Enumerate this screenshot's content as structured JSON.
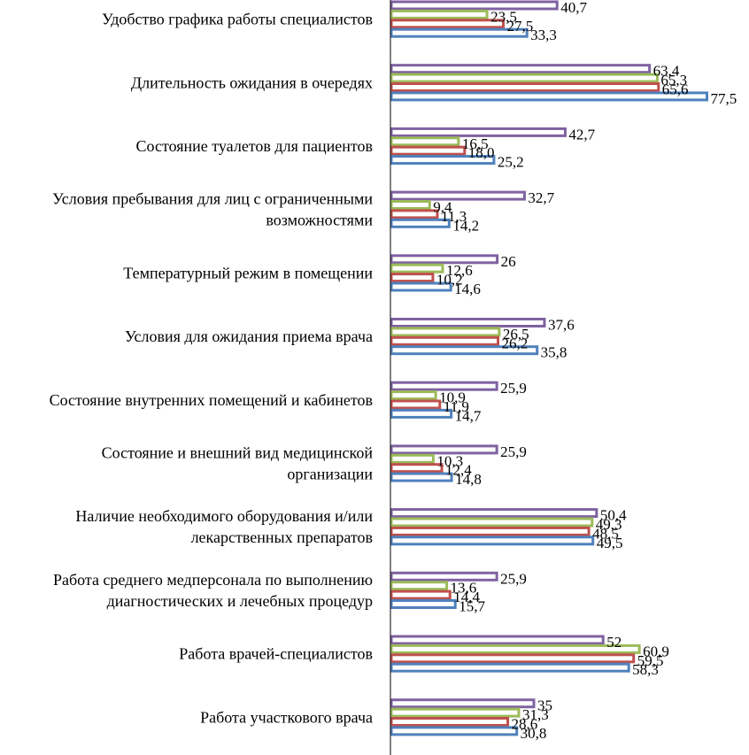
{
  "chart_data": {
    "type": "bar",
    "orientation": "horizontal",
    "title": "",
    "xlabel": "",
    "ylabel": "",
    "xlim": [
      0,
      80
    ],
    "grid": false,
    "legend": "none",
    "categories": [
      [
        "Удобство графика работы специалистов"
      ],
      [
        "Длительность ожидания в очередях"
      ],
      [
        "Состояние туалетов для пациентов"
      ],
      [
        "Условия пребывания для лиц с ограниченными",
        "возможностями"
      ],
      [
        "Температурный режим в помещении"
      ],
      [
        "Условия для ожидания приема врача"
      ],
      [
        "Состояние внутренних помещений и кабинетов"
      ],
      [
        "Состояние и внешний вид медицинской",
        "организации"
      ],
      [
        "Наличие необходимого оборудования и/или",
        "лекарственных препаратов"
      ],
      [
        "Работа среднего медперсонала по выполнению",
        "диагностических и лечебных процедур"
      ],
      [
        "Работа врачей-специалистов"
      ],
      [
        "Работа участкового врача"
      ]
    ],
    "series": [
      {
        "name": "series-purple",
        "color": "#7f62a1",
        "values": [
          40.7,
          63.4,
          42.7,
          32.7,
          26,
          37.6,
          25.9,
          25.9,
          50.4,
          25.9,
          52,
          35
        ],
        "labels": [
          "40,7",
          "63,4",
          "42,7",
          "32,7",
          "26",
          "37,6",
          "25,9",
          "25,9",
          "50,4",
          "25,9",
          "52",
          "35"
        ]
      },
      {
        "name": "series-green",
        "color": "#9bbb59",
        "values": [
          23.5,
          65.3,
          16.5,
          9.4,
          12.6,
          26.5,
          10.9,
          10.3,
          49.3,
          13.6,
          60.9,
          31.3
        ],
        "labels": [
          "23,5",
          "65,3",
          "16,5",
          "9,4",
          "12,6",
          "26,5",
          "10,9",
          "10,3",
          "49,3",
          "13,6",
          "60,9",
          "31,3"
        ]
      },
      {
        "name": "series-red",
        "color": "#c0504d",
        "values": [
          27.5,
          65.6,
          18.0,
          11.3,
          10.2,
          26.2,
          11.9,
          12.4,
          48.5,
          14.4,
          59.5,
          28.6
        ],
        "labels": [
          "27,5",
          "65,6",
          "18,0",
          "11,3",
          "10,2",
          "26,2",
          "11,9",
          "12,4",
          "48,5",
          "14,4",
          "59,5",
          "28,6"
        ]
      },
      {
        "name": "series-blue",
        "color": "#4f81bd",
        "values": [
          33.3,
          77.5,
          25.2,
          14.2,
          14.6,
          35.8,
          14.7,
          14.8,
          49.5,
          15.7,
          58.3,
          30.8
        ],
        "labels": [
          "33,3",
          "77,5",
          "25,2",
          "14,2",
          "14,6",
          "35,8",
          "14,7",
          "14,8",
          "49,5",
          "15,7",
          "58,3",
          "30,8"
        ]
      }
    ]
  }
}
